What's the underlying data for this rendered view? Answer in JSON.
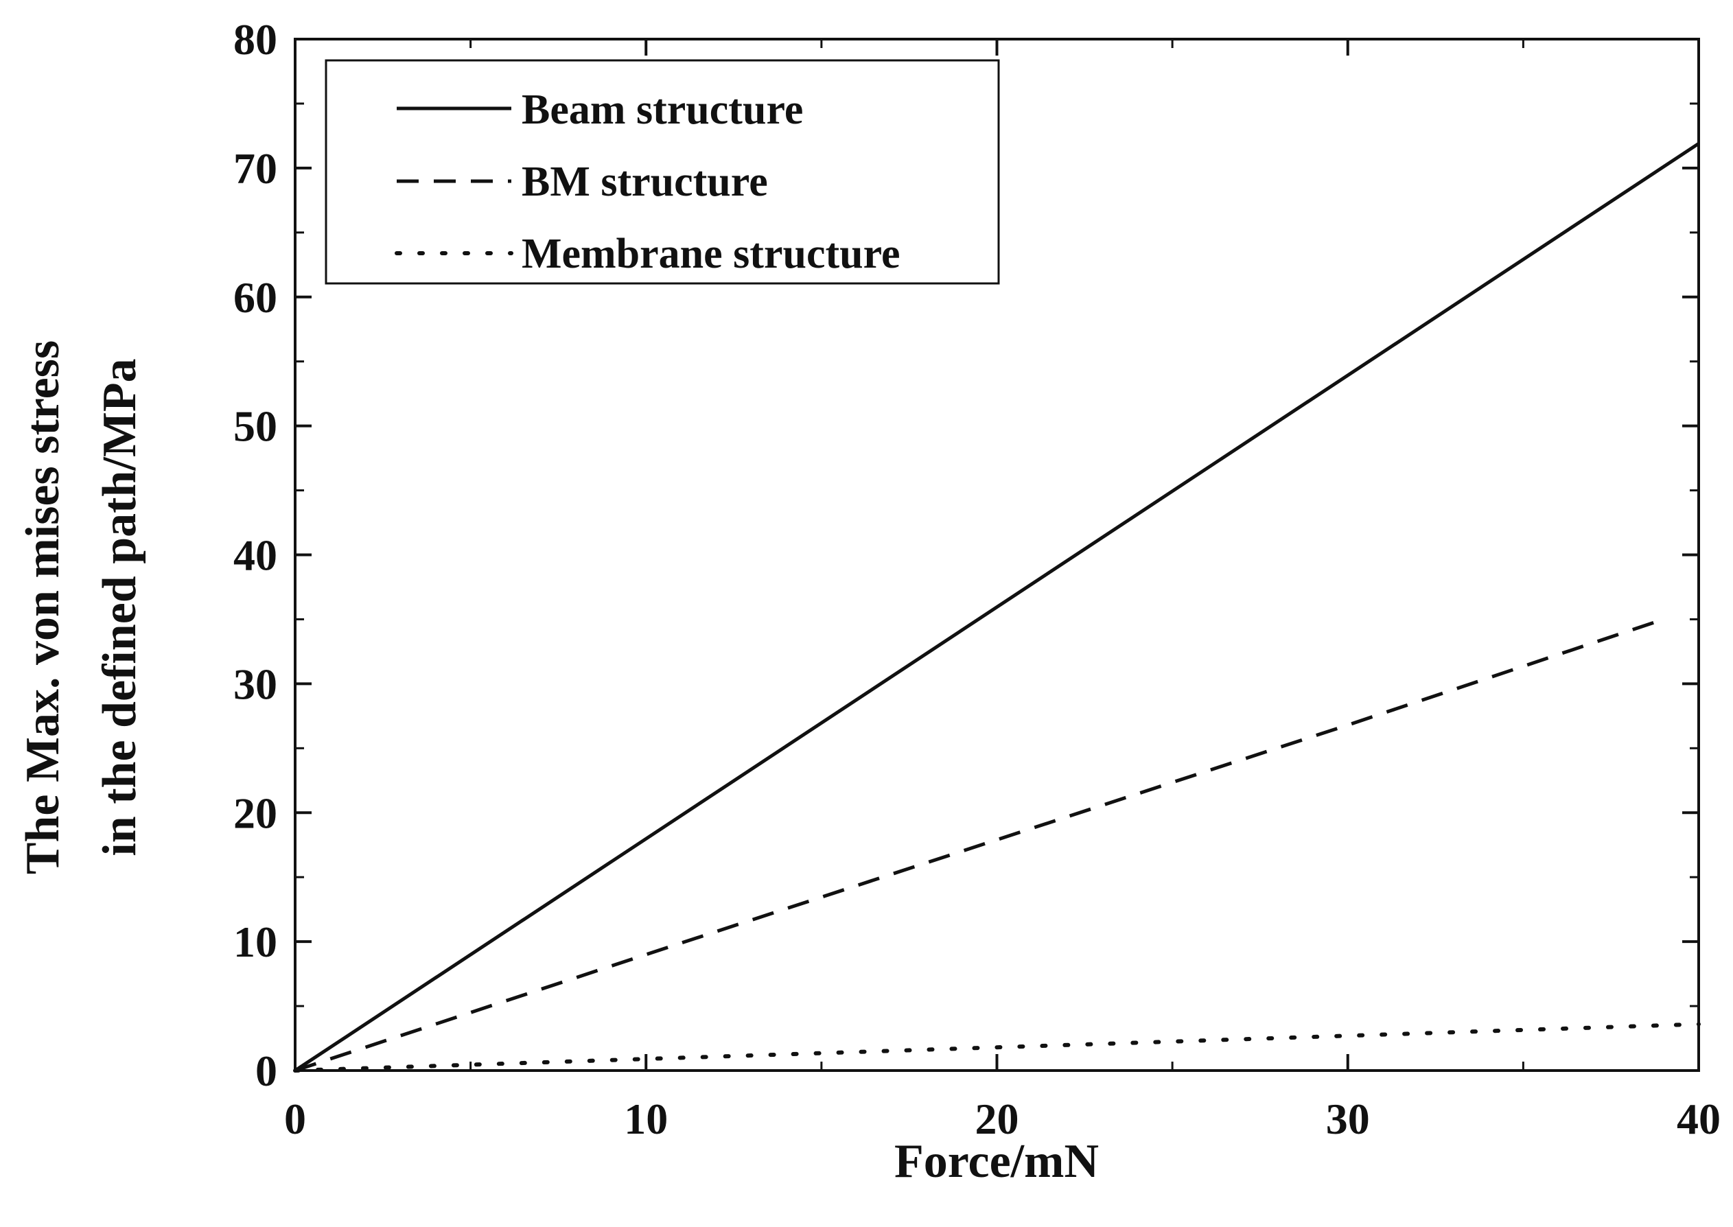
{
  "chart_data": {
    "type": "line",
    "title": "",
    "xlabel": "Force/mN",
    "ylabel_lines": [
      "The Max. von mises stress",
      "in the defined path/MPa"
    ],
    "xlim": [
      0,
      40
    ],
    "ylim": [
      0,
      80
    ],
    "x_ticks": [
      "0",
      "10",
      "20",
      "30",
      "40"
    ],
    "y_ticks": [
      "0",
      "10",
      "20",
      "30",
      "40",
      "50",
      "60",
      "70",
      "80"
    ],
    "grid": false,
    "legend_position": "top-left",
    "series": [
      {
        "name": "Beam structure",
        "style": "solid",
        "x": [
          0,
          40
        ],
        "y": [
          0,
          71.9
        ]
      },
      {
        "name": "BM structure",
        "style": "dashed",
        "x": [
          0,
          10,
          20,
          30,
          39
        ],
        "y": [
          0,
          9.0,
          17.9,
          26.8,
          35.0
        ]
      },
      {
        "name": "Membrane structure",
        "style": "dotted",
        "x": [
          0,
          40
        ],
        "y": [
          0,
          3.6
        ]
      }
    ]
  }
}
